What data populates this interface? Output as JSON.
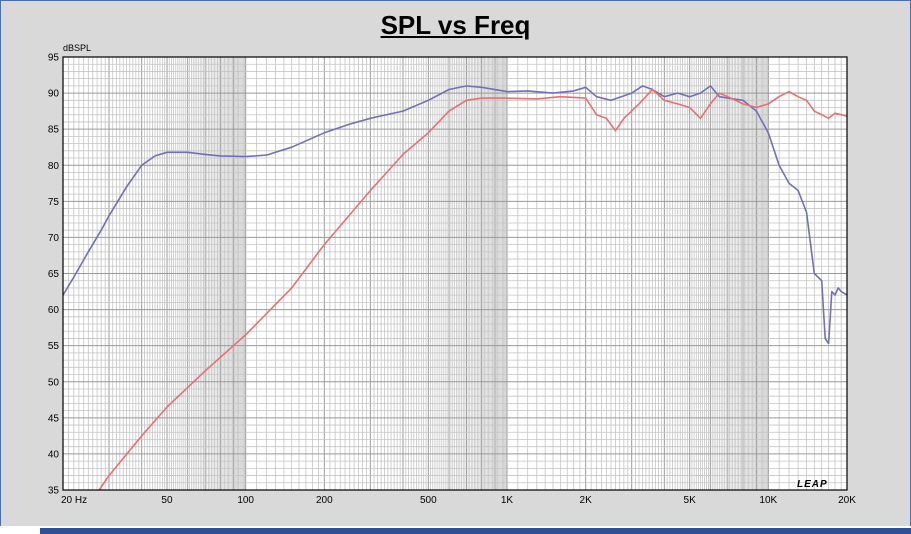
{
  "chart_data": {
    "type": "line",
    "title": "SPL vs Freq",
    "ylabel": "dBSPL",
    "xlabel": "",
    "x_scale": "log",
    "xlim": [
      20,
      20000
    ],
    "ylim": [
      35,
      95
    ],
    "grid": true,
    "brand": "LEAP",
    "y_ticks": [
      35,
      40,
      45,
      50,
      55,
      60,
      65,
      70,
      75,
      80,
      85,
      90,
      95
    ],
    "x_ticks": [
      {
        "value": 20,
        "label": "20  Hz"
      },
      {
        "value": 50,
        "label": "50"
      },
      {
        "value": 100,
        "label": "100"
      },
      {
        "value": 200,
        "label": "200"
      },
      {
        "value": 500,
        "label": "500"
      },
      {
        "value": 1000,
        "label": "1K"
      },
      {
        "value": 2000,
        "label": "2K"
      },
      {
        "value": 5000,
        "label": "5K"
      },
      {
        "value": 10000,
        "label": "10K"
      },
      {
        "value": 20000,
        "label": "20K"
      }
    ],
    "series": [
      {
        "color": "#7070b8",
        "points": [
          [
            20,
            62
          ],
          [
            22,
            64.5
          ],
          [
            25,
            68
          ],
          [
            28,
            71
          ],
          [
            30,
            73
          ],
          [
            35,
            77
          ],
          [
            40,
            80
          ],
          [
            45,
            81.3
          ],
          [
            50,
            81.8
          ],
          [
            60,
            81.8
          ],
          [
            70,
            81.5
          ],
          [
            80,
            81.3
          ],
          [
            100,
            81.2
          ],
          [
            120,
            81.4
          ],
          [
            150,
            82.5
          ],
          [
            200,
            84.5
          ],
          [
            250,
            85.7
          ],
          [
            300,
            86.5
          ],
          [
            400,
            87.5
          ],
          [
            500,
            89
          ],
          [
            600,
            90.5
          ],
          [
            700,
            91
          ],
          [
            800,
            90.8
          ],
          [
            1000,
            90.2
          ],
          [
            1200,
            90.3
          ],
          [
            1500,
            90
          ],
          [
            1800,
            90.3
          ],
          [
            2000,
            90.8
          ],
          [
            2200,
            89.5
          ],
          [
            2500,
            89
          ],
          [
            3000,
            90
          ],
          [
            3300,
            91
          ],
          [
            3600,
            90.5
          ],
          [
            4000,
            89.5
          ],
          [
            4500,
            90
          ],
          [
            5000,
            89.5
          ],
          [
            5500,
            90
          ],
          [
            6000,
            91
          ],
          [
            6500,
            89.5
          ],
          [
            7000,
            89.3
          ],
          [
            8000,
            89
          ],
          [
            9000,
            87.5
          ],
          [
            10000,
            84.5
          ],
          [
            11000,
            80
          ],
          [
            12000,
            77.5
          ],
          [
            13000,
            76.5
          ],
          [
            14000,
            73.5
          ],
          [
            15000,
            65
          ],
          [
            16000,
            64
          ],
          [
            16500,
            56
          ],
          [
            17000,
            55.3
          ],
          [
            17500,
            62.5
          ],
          [
            18000,
            62
          ],
          [
            18500,
            63
          ],
          [
            19000,
            62.5
          ],
          [
            20000,
            62
          ]
        ]
      },
      {
        "color": "#e87070",
        "points": [
          [
            27.5,
            35
          ],
          [
            30,
            37
          ],
          [
            40,
            42.5
          ],
          [
            50,
            46.5
          ],
          [
            70,
            51.5
          ],
          [
            100,
            56.5
          ],
          [
            150,
            63
          ],
          [
            200,
            69
          ],
          [
            300,
            76.5
          ],
          [
            400,
            81.5
          ],
          [
            500,
            84.5
          ],
          [
            600,
            87.5
          ],
          [
            700,
            89
          ],
          [
            800,
            89.3
          ],
          [
            1000,
            89.3
          ],
          [
            1300,
            89.2
          ],
          [
            1600,
            89.5
          ],
          [
            2000,
            89.3
          ],
          [
            2200,
            87
          ],
          [
            2400,
            86.5
          ],
          [
            2600,
            84.8
          ],
          [
            2800,
            86.5
          ],
          [
            3200,
            88.5
          ],
          [
            3600,
            90.5
          ],
          [
            4000,
            89
          ],
          [
            4500,
            88.5
          ],
          [
            5000,
            88
          ],
          [
            5500,
            86.5
          ],
          [
            6000,
            88.5
          ],
          [
            6500,
            90
          ],
          [
            7000,
            89.5
          ],
          [
            8000,
            88.5
          ],
          [
            9000,
            88
          ],
          [
            10000,
            88.5
          ],
          [
            11000,
            89.5
          ],
          [
            12000,
            90.2
          ],
          [
            13000,
            89.5
          ],
          [
            14000,
            89
          ],
          [
            15000,
            87.5
          ],
          [
            16000,
            87
          ],
          [
            17000,
            86.5
          ],
          [
            18000,
            87.2
          ],
          [
            19000,
            87
          ],
          [
            20000,
            86.8
          ]
        ]
      }
    ]
  }
}
